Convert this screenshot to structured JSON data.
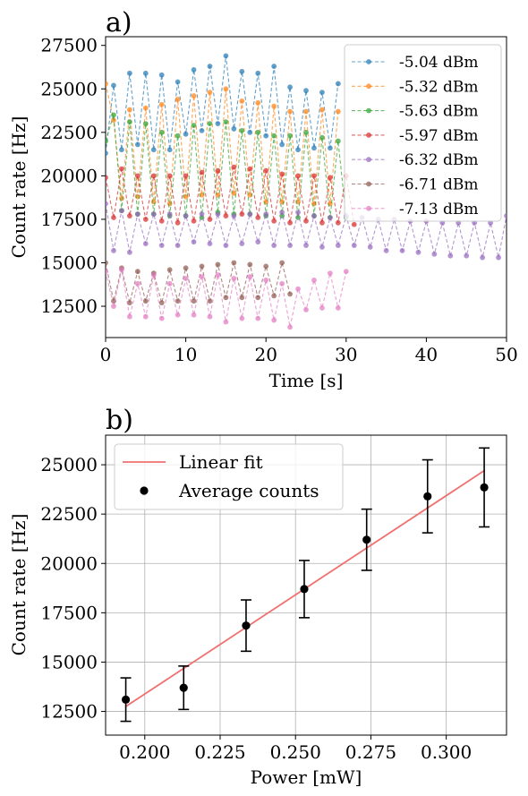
{
  "chart_data": [
    {
      "type": "line",
      "panel_label": "a)",
      "xlabel": "Time [s]",
      "ylabel": "Count rate [Hz]",
      "xlim": [
        0,
        50
      ],
      "ylim": [
        10700,
        28000
      ],
      "xticks": [
        0,
        10,
        20,
        30,
        40,
        50
      ],
      "yticks": [
        12500,
        15000,
        17500,
        20000,
        22500,
        25000,
        27500
      ],
      "grid": false,
      "legend": "top-right",
      "marker": "circle",
      "linestyle": "dashed",
      "series": [
        {
          "name": "-5.04 dBm",
          "color": "#1f77b4",
          "x": [
            0,
            1,
            2,
            3,
            4,
            5,
            6,
            7,
            8,
            9,
            10,
            11,
            12,
            13,
            14,
            15,
            16,
            17,
            18,
            19,
            20,
            21,
            22,
            23,
            24,
            25,
            26,
            27,
            28,
            29
          ],
          "values": [
            21300,
            25200,
            21500,
            25900,
            21800,
            25900,
            21500,
            25800,
            21500,
            25400,
            22400,
            26100,
            22600,
            26300,
            23000,
            26900,
            22700,
            26000,
            22500,
            25900,
            22300,
            26300,
            21800,
            25100,
            21500,
            24900,
            21600,
            24800,
            21600,
            25300
          ]
        },
        {
          "name": "-5.32 dBm",
          "color": "#ff7f0e",
          "x": [
            0,
            1,
            2,
            3,
            4,
            5,
            6,
            7,
            8,
            9,
            10,
            11,
            12,
            13,
            14,
            15,
            16,
            17,
            18,
            19,
            20,
            21,
            22,
            23,
            24,
            25,
            26,
            27,
            28,
            29
          ],
          "values": [
            25300,
            23200,
            18700,
            23800,
            18800,
            23900,
            18500,
            24100,
            18400,
            24400,
            18800,
            24600,
            18900,
            24800,
            18900,
            25000,
            19000,
            24300,
            18900,
            24200,
            18500,
            24000,
            18500,
            23700,
            18500,
            23700,
            18400,
            23800,
            18400,
            23700
          ]
        },
        {
          "name": "-5.63 dBm",
          "color": "#2ca02c",
          "x": [
            0,
            1,
            2,
            3,
            4,
            5,
            6,
            7,
            8,
            9,
            10,
            11,
            12,
            13,
            14,
            15,
            16,
            17,
            18,
            19,
            20,
            21,
            22,
            23,
            24,
            25,
            26,
            27,
            28,
            29,
            30
          ],
          "values": [
            22000,
            23500,
            18000,
            23100,
            17800,
            23000,
            17800,
            22500,
            17700,
            22300,
            17700,
            22900,
            17600,
            23000,
            17900,
            23100,
            17800,
            22600,
            17800,
            22500,
            17700,
            22300,
            17700,
            22300,
            17600,
            22500,
            17700,
            22200,
            17600,
            22000,
            17600
          ]
        },
        {
          "name": "-5.97 dBm",
          "color": "#d62728",
          "x": [
            0,
            1,
            2,
            3,
            4,
            5,
            6,
            7,
            8,
            9,
            10,
            11,
            12,
            13,
            14,
            15,
            16,
            17,
            18,
            19,
            20,
            21,
            22,
            23,
            24,
            25,
            26,
            27,
            28,
            29,
            30,
            31
          ],
          "values": [
            19900,
            17600,
            20400,
            17700,
            20000,
            17500,
            20000,
            17400,
            20000,
            17300,
            20000,
            17400,
            20200,
            17500,
            20300,
            17700,
            20500,
            17800,
            20400,
            17600,
            20300,
            17400,
            20100,
            17300,
            20000,
            17400,
            20000,
            17300,
            19900,
            17300,
            20000,
            17200
          ]
        },
        {
          "name": "-6.32 dBm",
          "color": "#9467bd",
          "x": [
            0,
            1,
            2,
            3,
            4,
            5,
            6,
            7,
            8,
            9,
            10,
            11,
            12,
            13,
            14,
            15,
            16,
            17,
            18,
            19,
            20,
            21,
            22,
            23,
            24,
            25,
            26,
            27,
            28,
            29,
            30,
            31,
            32,
            33,
            34,
            35,
            36,
            37,
            38,
            39,
            40,
            41,
            42,
            43,
            44,
            45,
            46,
            47,
            48,
            49,
            50
          ],
          "values": [
            18400,
            15700,
            18000,
            15600,
            17800,
            16100,
            17800,
            16000,
            17800,
            16000,
            17700,
            16200,
            17800,
            16100,
            17800,
            16000,
            17700,
            16100,
            17800,
            16200,
            17800,
            16000,
            17900,
            16000,
            17900,
            16000,
            17700,
            15900,
            17600,
            16000,
            17700,
            16000,
            17600,
            15900,
            17500,
            15700,
            17500,
            15700,
            17400,
            15600,
            17400,
            15500,
            17300,
            15400,
            17300,
            15400,
            17300,
            15300,
            17300,
            15300,
            17700
          ]
        },
        {
          "name": "-6.71 dBm",
          "color": "#8c564b",
          "x": [
            0,
            1,
            2,
            3,
            4,
            5,
            6,
            7,
            8,
            9,
            10,
            11,
            12,
            13,
            14,
            15,
            16,
            17,
            18,
            19,
            20,
            21,
            22,
            23
          ],
          "values": [
            15000,
            12800,
            14700,
            12700,
            14500,
            12800,
            14400,
            12700,
            14600,
            12800,
            14700,
            12800,
            14800,
            12800,
            14900,
            13000,
            15000,
            13000,
            14900,
            13000,
            14800,
            13100,
            15000,
            13200
          ]
        },
        {
          "name": "-7.13 dBm",
          "color": "#e377c2",
          "x": [
            0,
            1,
            2,
            3,
            4,
            5,
            6,
            7,
            8,
            9,
            10,
            11,
            12,
            13,
            14,
            15,
            16,
            17,
            18,
            19,
            20,
            21,
            22,
            23,
            24,
            25,
            26,
            27,
            28,
            29,
            30
          ],
          "values": [
            14500,
            12500,
            14600,
            11900,
            13800,
            11900,
            14300,
            11800,
            13800,
            12000,
            14100,
            12000,
            14200,
            11900,
            14300,
            11600,
            14100,
            11800,
            14200,
            11800,
            14000,
            11700,
            13800,
            11300,
            13500,
            12300,
            14000,
            12400,
            14400,
            12400,
            14500
          ]
        }
      ]
    },
    {
      "type": "scatter",
      "panel_label": "b)",
      "xlabel": "Power [mW]",
      "ylabel": "Count rate [Hz]",
      "xlim": [
        0.187,
        0.32
      ],
      "ylim": [
        11300,
        26500
      ],
      "xticks": [
        "0.200",
        "0.225",
        "0.250",
        "0.275",
        "0.300"
      ],
      "yticks": [
        12500,
        15000,
        17500,
        20000,
        22500,
        25000
      ],
      "grid": true,
      "legend": "top-left",
      "fit": {
        "name": "Linear fit",
        "color": "#f07070",
        "x": [
          0.1937,
          0.3126
        ],
        "y": [
          12750,
          24700
        ]
      },
      "points": {
        "name": "Average counts",
        "color": "#000000",
        "x": [
          0.1937,
          0.2129,
          0.2336,
          0.2529,
          0.2736,
          0.2938,
          0.3126
        ],
        "y": [
          13100,
          13700,
          16850,
          18700,
          21200,
          23400,
          23850
        ],
        "err": [
          1100,
          1100,
          1300,
          1450,
          1550,
          1850,
          2000
        ]
      }
    }
  ]
}
